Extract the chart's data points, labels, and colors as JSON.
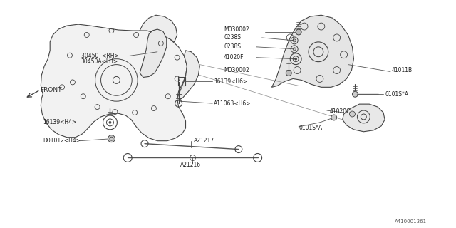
{
  "bg_color": "#ffffff",
  "line_color": "#444444",
  "fig_width": 6.4,
  "fig_height": 3.2,
  "dpi": 100,
  "part_number_ref": "A410001361",
  "labels": {
    "0101S_A_top": "0101S*A",
    "41020C": "41020C",
    "0101S_A_mid": "0101S*A",
    "41011B": "41011B",
    "M030002_top": "M030002",
    "41020F": "41020F",
    "0238S_top": "0238S",
    "0238S_bot": "0238S",
    "M030002_bot": "M030002",
    "A11063": "A11063<H6>",
    "16139_H6": "16139<H6>",
    "30450_RH": "30450  <RH>",
    "30450A_LH": "30450A<LH>",
    "16139_H4": "16139<H4>",
    "D01012_H4": "D01012<H4>",
    "A21217": "A21217",
    "A21216": "A21216",
    "FRONT": "FRONT"
  }
}
